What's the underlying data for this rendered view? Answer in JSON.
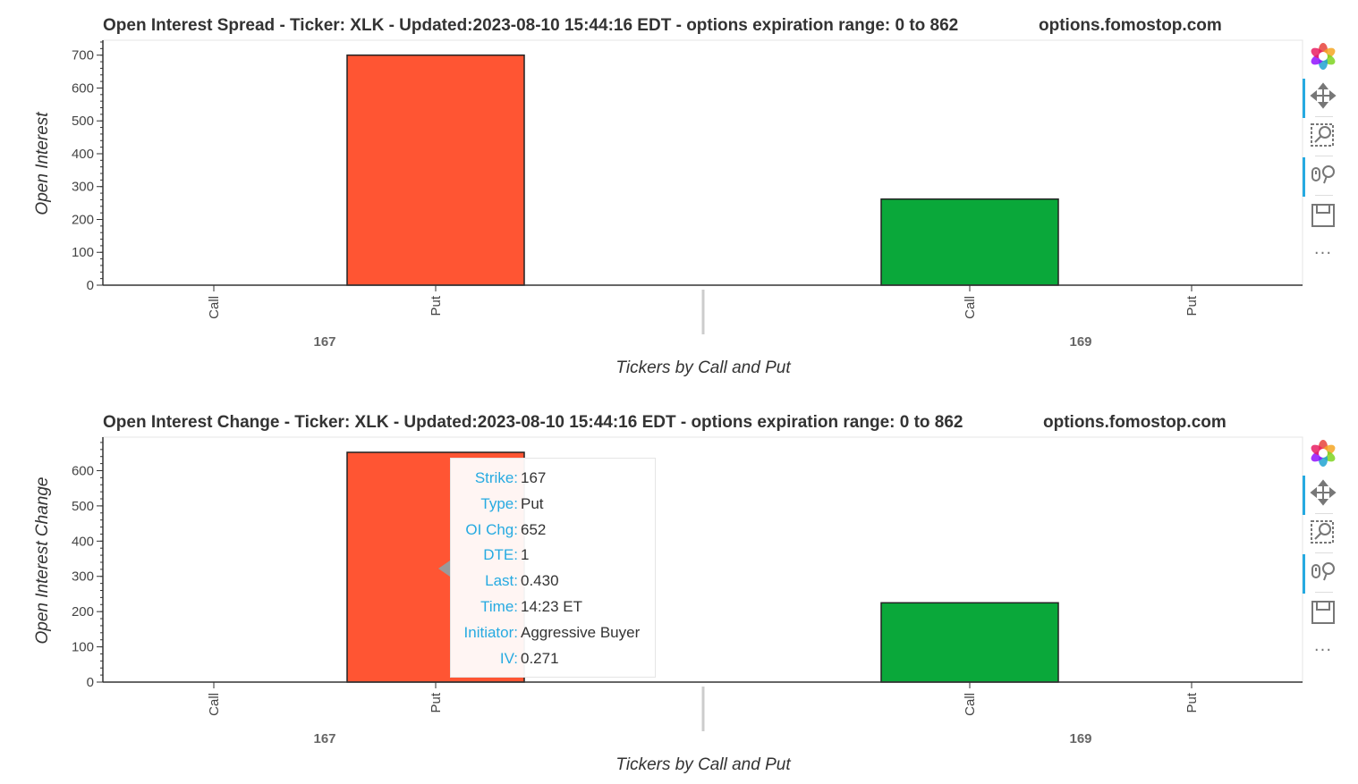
{
  "panels": [
    {
      "title": "Open Interest Spread - Ticker: XLK - Updated:2023-08-10 15:44:16 EDT - options expiration range: 0 to 862",
      "brand": "options.fomostop.com"
    },
    {
      "title": "Open Interest Change - Ticker: XLK - Updated:2023-08-10 15:44:16 EDT - options expiration range: 0 to 862",
      "brand": "options.fomostop.com"
    }
  ],
  "toolbar": {
    "tools": [
      "bokeh-logo-icon",
      "pan-icon",
      "box-zoom-icon",
      "wheel-zoom-icon",
      "save-icon",
      "more-icon"
    ],
    "more_label": "···"
  },
  "tooltip": {
    "rows": [
      {
        "key": "Strike:",
        "value": "167"
      },
      {
        "key": "Type:",
        "value": "Put"
      },
      {
        "key": "OI Chg:",
        "value": "652"
      },
      {
        "key": "DTE:",
        "value": "1"
      },
      {
        "key": "Last:",
        "value": "0.430"
      },
      {
        "key": "Time:",
        "value": "14:23 ET"
      },
      {
        "key": "Initiator:",
        "value": "Aggressive Buyer"
      },
      {
        "key": "IV:",
        "value": "0.271"
      }
    ]
  },
  "colors": {
    "put": "#ff5533",
    "call": "#0aa83a",
    "logo": [
      "#e8433b",
      "#f5a623",
      "#7ed321",
      "#21a3d1",
      "#9013fe",
      "#e91e63"
    ]
  },
  "chart_data": [
    {
      "type": "bar",
      "groups": [
        "167",
        "169"
      ],
      "categories": [
        "Call",
        "Put"
      ],
      "values": [
        [
          0,
          700
        ],
        [
          262,
          0
        ]
      ],
      "bar_colors": [
        [
          "#ff5533",
          "#ff5533"
        ],
        [
          "#0aa83a",
          "#0aa83a"
        ]
      ],
      "xlabel": "Tickers by Call and Put",
      "ylabel": "Open Interest",
      "ylim": [
        0,
        740
      ],
      "yticks": [
        0,
        100,
        200,
        300,
        400,
        500,
        600,
        700
      ]
    },
    {
      "type": "bar",
      "groups": [
        "167",
        "169"
      ],
      "categories": [
        "Call",
        "Put"
      ],
      "values": [
        [
          0,
          652
        ],
        [
          225,
          0
        ]
      ],
      "bar_colors": [
        [
          "#ff5533",
          "#ff5533"
        ],
        [
          "#0aa83a",
          "#0aa83a"
        ]
      ],
      "xlabel": "Tickers by Call and Put",
      "ylabel": "Open Interest Change",
      "ylim": [
        0,
        690
      ],
      "yticks": [
        0,
        100,
        200,
        300,
        400,
        500,
        600
      ]
    }
  ]
}
